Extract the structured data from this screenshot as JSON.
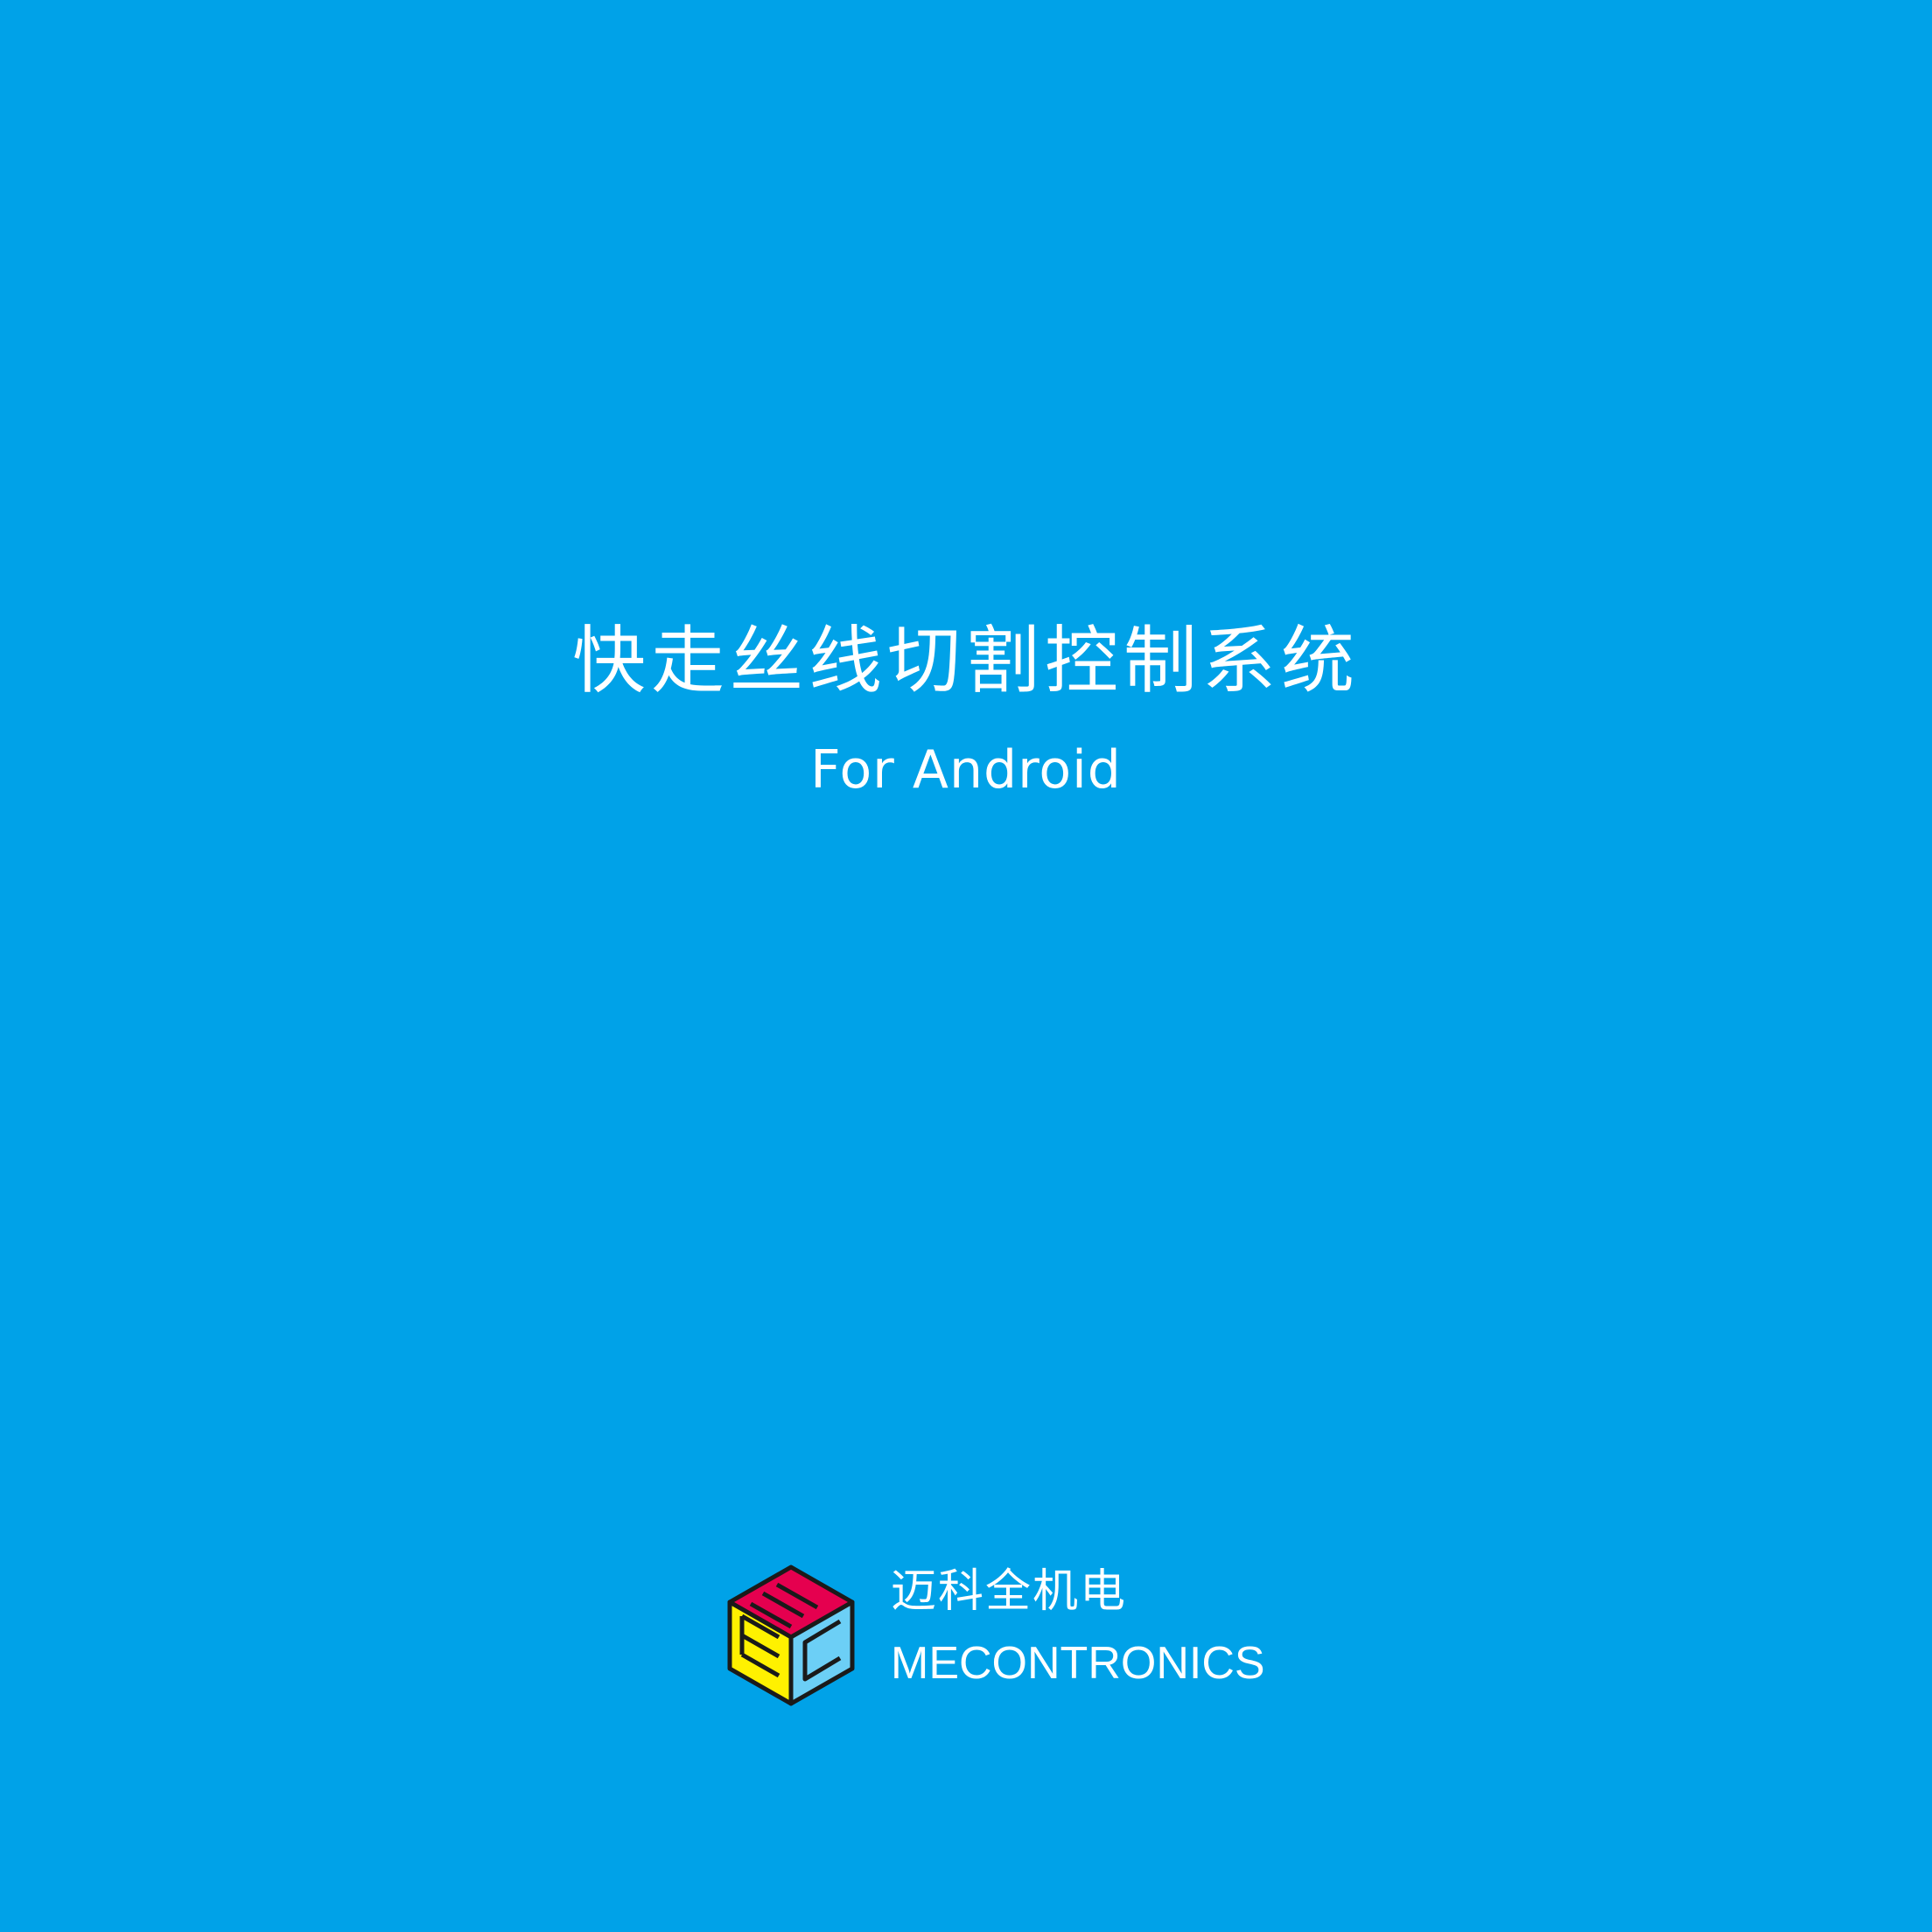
{
  "screen": {
    "background_color": "#00a2e8",
    "text_color": "#ffffff"
  },
  "splash": {
    "title": "快走丝线切割控制系统",
    "subtitle": "For Android"
  },
  "brand": {
    "logo_icon": "mec-cube-logo-icon",
    "name_cn": "迈科全机电",
    "name_en": "MECONTRONICS",
    "logo_colors": {
      "top": "#e5004f",
      "left": "#fff100",
      "right": "#6ccff6",
      "outline": "#1a1a1a"
    }
  }
}
